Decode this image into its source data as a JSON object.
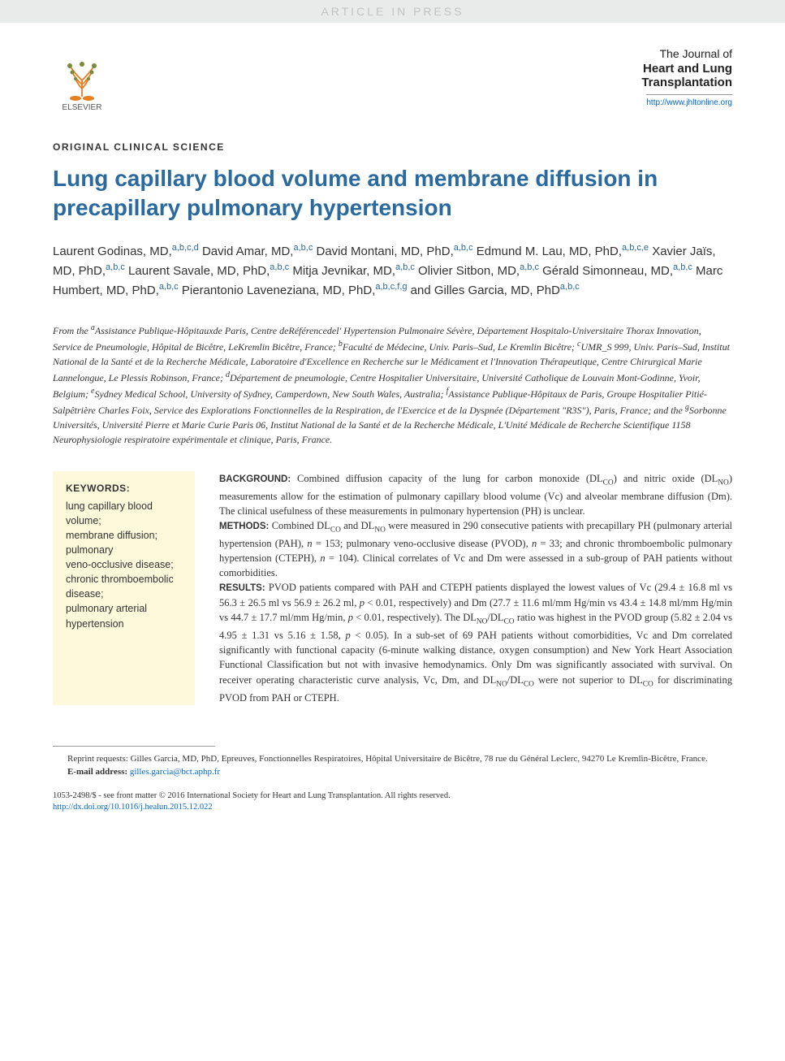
{
  "watermark": "ARTICLE IN PRESS",
  "publisher": {
    "name": "ELSEVIER"
  },
  "journal": {
    "line1": "The Journal of",
    "line2": "Heart and Lung",
    "line3": "Transplantation",
    "url": "http://www.jhltonline.org"
  },
  "section_label": "ORIGINAL CLINICAL SCIENCE",
  "title": "Lung capillary blood volume and membrane diffusion in precapillary pulmonary hypertension",
  "authors_html": "Laurent Godinas, MD,<sup>a,b,c,d</sup> David Amar, MD,<sup>a,b,c</sup> David Montani, MD, PhD,<sup>a,b,c</sup> Edmund M. Lau, MD, PhD,<sup>a,b,c,e</sup> Xavier Jaïs, MD, PhD,<sup>a,b,c</sup> Laurent Savale, MD, PhD,<sup>a,b,c</sup> Mitja Jevnikar, MD,<sup>a,b,c</sup> Olivier Sitbon, MD,<sup>a,b,c</sup> Gérald Simonneau, MD,<sup>a,b,c</sup> Marc Humbert, MD, PhD,<sup>a,b,c</sup> Pierantonio Laveneziana, MD, PhD,<sup>a,b,c,f,g</sup> and Gilles Garcia, MD, PhD<sup>a,b,c</sup>",
  "affiliations_html": "From the <sup>a</sup>Assistance Publique-Hôpitauxde Paris, Centre deRéférencedel' Hypertension Pulmonaire Sévère, Département Hospitalo-Universitaire Thorax Innovation, Service de Pneumologie, Hôpital de Bicêtre, LeKremlin Bicêtre, France; <sup>b</sup>Faculté de Médecine, Univ. Paris–Sud, Le Kremlin Bicêtre; <sup>c</sup>UMR_S 999, Univ. Paris–Sud, Institut National de la Santé et de la Recherche Médicale, Laboratoire d'Excellence en Recherche sur le Médicament et l'Innovation Thérapeutique, Centre Chirurgical Marie Lannelongue, Le Plessis Robinson, France; <sup>d</sup>Département de pneumologie, Centre Hospitalier Universitaire, Université Catholique de Louvain Mont-Godinne, Yvoir, Belgium; <sup>e</sup>Sydney Medical School, University of Sydney, Camperdown, New South Wales, Australia; <sup>f</sup>Assistance Publique-Hôpitaux de Paris, Groupe Hospitalier Pitié-Salpêtrière Charles Foix, Service des Explorations Fonctionnelles de la Respiration, de l'Exercice et de la Dyspnée (Département \"R3S\"), Paris, France; and the <sup>g</sup>Sorbonne Universités, Université Pierre et Marie Curie Paris 06, Institut National de la Santé et de la Recherche Médicale, L'Unité Médicale de Recherche Scientifique 1158 Neurophysiologie respiratoire expérimentale et clinique, Paris, France.",
  "keywords": {
    "heading": "KEYWORDS:",
    "list": "lung capillary blood volume;\nmembrane diffusion;\npulmonary\nveno-occlusive disease;\nchronic thromboembolic disease;\npulmonary arterial hypertension"
  },
  "abstract": {
    "background": {
      "label": "BACKGROUND:",
      "text_html": "Combined diffusion capacity of the lung for carbon monoxide (DL<sub>CO</sub>) and nitric oxide (DL<sub>NO</sub>) measurements allow for the estimation of pulmonary capillary blood volume (Vc) and alveolar membrane diffusion (Dm). The clinical usefulness of these measurements in pulmonary hypertension (PH) is unclear."
    },
    "methods": {
      "label": "METHODS:",
      "text_html": "Combined DL<sub>CO</sub> and DL<sub>NO</sub> were measured in 290 consecutive patients with precapillary PH (pulmonary arterial hypertension (PAH), <i>n</i> = 153; pulmonary veno-occlusive disease (PVOD), <i>n</i> = 33; and chronic thromboembolic pulmonary hypertension (CTEPH), <i>n</i> = 104). Clinical correlates of Vc and Dm were assessed in a sub-group of PAH patients without comorbidities."
    },
    "results": {
      "label": "RESULTS:",
      "text_html": "PVOD patients compared with PAH and CTEPH patients displayed the lowest values of Vc (29.4 ± 16.8 ml vs 56.3 ± 26.5 ml vs 56.9 ± 26.2 ml, <i>p</i> &lt; 0.01, respectively) and Dm (27.7 ± 11.6 ml/mm Hg/min vs 43.4 ± 14.8 ml/mm Hg/min vs 44.7 ± 17.7 ml/mm Hg/min, <i>p</i> &lt; 0.01, respectively). The DL<sub>NO</sub>/DL<sub>CO</sub> ratio was highest in the PVOD group (5.82 ± 2.04 vs 4.95 ± 1.31 vs 5.16 ± 1.58, <i>p</i> &lt; 0.05). In a sub-set of 69 PAH patients without comorbidities, Vc and Dm correlated significantly with functional capacity (6-minute walking distance, oxygen consumption) and New York Heart Association Functional Classification but not with invasive hemodynamics. Only Dm was significantly associated with survival. On receiver operating characteristic curve analysis, Vc, Dm, and DL<sub>NO</sub>/DL<sub>CO</sub> were not superior to DL<sub>CO</sub> for discriminating PVOD from PAH or CTEPH."
    }
  },
  "footnotes": {
    "reprint": "Reprint requests: Gilles Garcia, MD, PhD, Epreuves, Fonctionnelles Respiratoires, Hôpital Universitaire de Bicêtre, 78 rue du Général Leclerc, 94270 Le Kremlin-Bicêtre, France.",
    "email_label": "E-mail address:",
    "email": "gilles.garcia@bct.aphp.fr"
  },
  "copyright": {
    "issn": "1053-2498/$ - see front matter",
    "text": "© 2016 International Society for Heart and Lung Transplantation. All rights reserved.",
    "doi": "http://dx.doi.org/10.1016/j.healun.2015.12.022"
  },
  "colors": {
    "title_blue": "#2a6a9e",
    "link_blue": "#0066cc",
    "keywords_bg": "#fff9dc",
    "watermark_bg": "#e8ebe9",
    "watermark_text": "#c0c4c2"
  }
}
